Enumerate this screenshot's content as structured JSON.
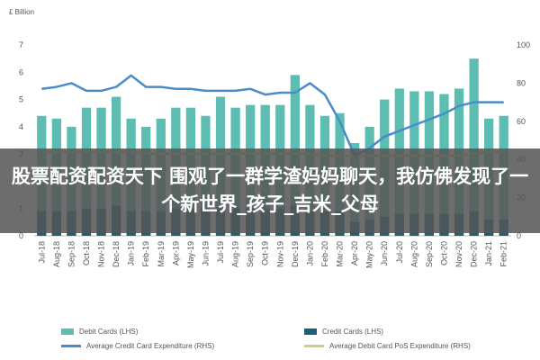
{
  "overlay": {
    "headline": "股票配资配资天下 围观了一群学渣妈妈聊天，我仿佛发现了一个新世界_孩子_吉米_父母"
  },
  "chart_data": {
    "type": "bar",
    "title": "",
    "ylabel_left": "£ Billion",
    "ylim_left": [
      0,
      7
    ],
    "yticks_left": [
      "0",
      "1",
      "2",
      "3",
      "4",
      "5",
      "6",
      "7"
    ],
    "ylim_right": [
      0,
      100
    ],
    "yticks_right": [
      "0",
      "20",
      "40",
      "60",
      "80",
      "100"
    ],
    "grid": false,
    "legend_position": "bottom",
    "categories": [
      "Jul-18",
      "Aug-18",
      "Sep-18",
      "Oct-18",
      "Nov-18",
      "Dec-18",
      "Jan-19",
      "Feb-19",
      "Mar-19",
      "Apr-19",
      "May-19",
      "Jun-19",
      "Jul-19",
      "Aug-19",
      "Sep-19",
      "Oct-19",
      "Nov-19",
      "Dec-19",
      "Jan-20",
      "Feb-20",
      "Mar-20",
      "Apr-20",
      "May-20",
      "Jun-20",
      "Jul-20",
      "Aug-20",
      "Sep-20",
      "Oct-20",
      "Nov-20",
      "Dec-20",
      "Jan-21",
      "Feb-21"
    ],
    "series": [
      {
        "name": "Debit Cards (LHS)",
        "type": "bar",
        "axis": "left",
        "color": "#5dbdb2",
        "values": [
          4.4,
          4.3,
          4.0,
          4.7,
          4.7,
          5.1,
          4.3,
          4.0,
          4.3,
          4.7,
          4.7,
          4.4,
          5.1,
          4.7,
          4.8,
          4.8,
          4.8,
          5.9,
          4.8,
          4.4,
          4.5,
          3.4,
          4.0,
          5.0,
          5.4,
          5.3,
          5.3,
          5.2,
          5.4,
          6.5,
          4.3,
          4.4
        ]
      },
      {
        "name": "Credit Cards (LHS)",
        "type": "bar",
        "axis": "left",
        "color": "#1d5f7a",
        "values": [
          0.9,
          0.9,
          0.9,
          1.0,
          1.0,
          1.1,
          0.9,
          0.9,
          0.9,
          1.0,
          1.0,
          1.0,
          1.0,
          1.0,
          1.0,
          1.0,
          1.0,
          1.1,
          0.9,
          0.9,
          0.9,
          0.5,
          0.6,
          0.7,
          0.8,
          0.8,
          0.8,
          0.8,
          0.8,
          0.9,
          0.6,
          0.6
        ]
      },
      {
        "name": "Average Credit Card Expenditure (RHS)",
        "type": "line",
        "axis": "right",
        "color": "#4a8cc9",
        "values": [
          77,
          78,
          80,
          76,
          76,
          78,
          84,
          78,
          78,
          77,
          77,
          76,
          76,
          76,
          77,
          74,
          75,
          75,
          80,
          74,
          60,
          42,
          46,
          52,
          55,
          58,
          61,
          64,
          68,
          70,
          70,
          70
        ]
      },
      {
        "name": "Average Debit Card PoS Expenditure (RHS)",
        "type": "line",
        "axis": "right",
        "color": "#c6d183",
        "values": [
          44,
          44,
          44,
          44,
          44,
          44,
          44,
          43,
          43,
          43,
          43,
          43,
          43,
          43,
          43,
          43,
          43,
          43,
          43,
          42,
          42,
          42,
          42,
          42,
          42,
          42,
          42,
          42,
          42,
          43,
          44,
          44
        ]
      }
    ]
  }
}
